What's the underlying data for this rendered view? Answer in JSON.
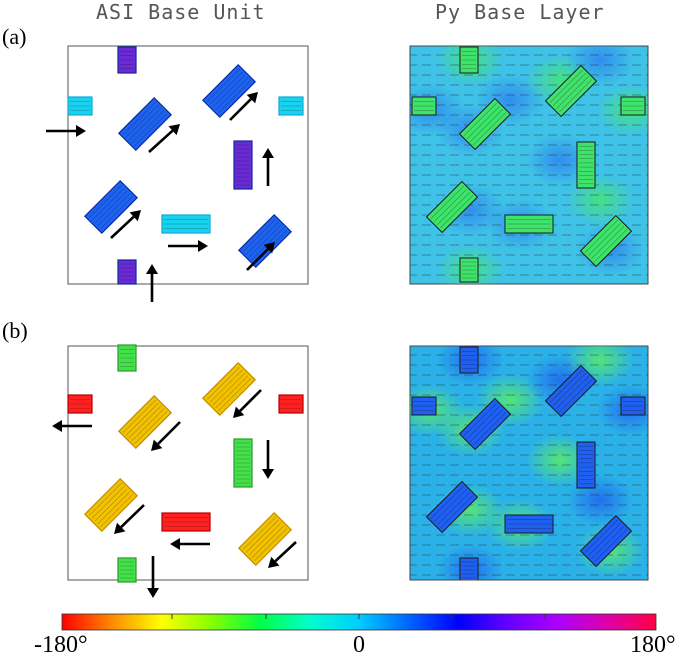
{
  "titles": {
    "asi": "ASI Base Unit",
    "py": "Py Base Layer"
  },
  "rows": [
    {
      "label": "(a)"
    },
    {
      "label": "(b)"
    }
  ],
  "colorbar": {
    "labels": {
      "min": "-180°",
      "mid": "0",
      "max": "180°"
    },
    "colors": [
      "#ff0000",
      "#ff8800",
      "#ffff00",
      "#88ff00",
      "#00ff44",
      "#00ffcc",
      "#00ccff",
      "#0066ff",
      "#0000ff",
      "#6600ff",
      "#aa00ff",
      "#dd00aa",
      "#ff0044"
    ]
  },
  "palette": {
    "a_elem_blue": "#1e63f0",
    "a_elem_purple": "#6a2bd6",
    "a_elem_cyan": "#18d3f0",
    "b_elem_orange": "#f2c200",
    "b_elem_green": "#44e04a",
    "b_elem_red": "#ff2020",
    "py_a_bg": "#3ec2e8",
    "py_a_green": "#3fe26a",
    "py_b_bg": "#2ab2e8",
    "py_b_blue": "#2060f0"
  },
  "arrow_dirs": {
    "a": [
      "right",
      "up-right",
      "up-right",
      "up",
      "up-right",
      "right",
      "up-right",
      "up"
    ],
    "b": [
      "left",
      "down-left",
      "down-left",
      "down",
      "down-left",
      "left",
      "down-left",
      "down"
    ]
  }
}
